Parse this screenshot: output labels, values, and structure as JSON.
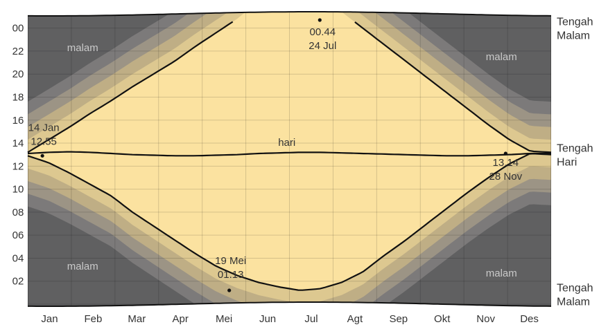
{
  "chart_data": {
    "type": "area",
    "y_ticks": [
      "00",
      "22",
      "20",
      "18",
      "16",
      "14",
      "12",
      "10",
      "08",
      "06",
      "04",
      "02"
    ],
    "x_ticks": [
      "Jan",
      "Feb",
      "Mar",
      "Apr",
      "Mei",
      "Jun",
      "Jul",
      "Agt",
      "Sep",
      "Okt",
      "Nov",
      "Des"
    ],
    "right_labels": [
      {
        "line1": "Tengah",
        "line2": "Malam"
      },
      {
        "line1": "Tengah",
        "line2": "Hari"
      },
      {
        "line1": "Tengah",
        "line2": "Malam"
      }
    ],
    "band_labels": {
      "day": "hari",
      "night": "malam"
    },
    "sunrise_hours": [
      12.9,
      12.3,
      11.4,
      10.4,
      9.4,
      8.0,
      6.8,
      5.6,
      4.4,
      3.3,
      2.5,
      1.9,
      1.5,
      1.2,
      1.35,
      1.9,
      2.8,
      4.2,
      5.5,
      6.9,
      8.3,
      9.7,
      11.0,
      12.2,
      13.1,
      13.0
    ],
    "sunset_hours": [
      13.2,
      14.3,
      15.4,
      16.6,
      17.7,
      18.9,
      20.0,
      21.1,
      22.4,
      23.6,
      24.8,
      26.3,
      26.6,
      26.7,
      26.5,
      25.4,
      24.0,
      22.6,
      21.2,
      19.8,
      18.4,
      17.0,
      15.6,
      14.3,
      13.3,
      13.2
    ],
    "noon_hours": [
      13.1,
      13.2,
      13.25,
      13.2,
      13.1,
      13.0,
      12.95,
      12.9,
      12.9,
      12.95,
      13.0,
      13.1,
      13.15,
      13.2,
      13.2,
      13.15,
      13.1,
      13.05,
      13.0,
      12.95,
      12.9,
      12.9,
      12.95,
      13.0,
      13.1,
      13.1
    ],
    "annotations": [
      {
        "time": "12.55",
        "date": "14 Jan"
      },
      {
        "time": "01.13",
        "date": "19 Mei"
      },
      {
        "time": "00.44",
        "date": "24 Jul"
      },
      {
        "time": "13.14",
        "date": "28 Nov"
      }
    ],
    "colors": {
      "day": "#fbe2a0",
      "twilight": [
        "#ddc890",
        "#bfae85",
        "#9c9485",
        "#7c7a7a"
      ],
      "night": "#606061",
      "line": "#111111",
      "grid": "#c8bfa8"
    }
  }
}
